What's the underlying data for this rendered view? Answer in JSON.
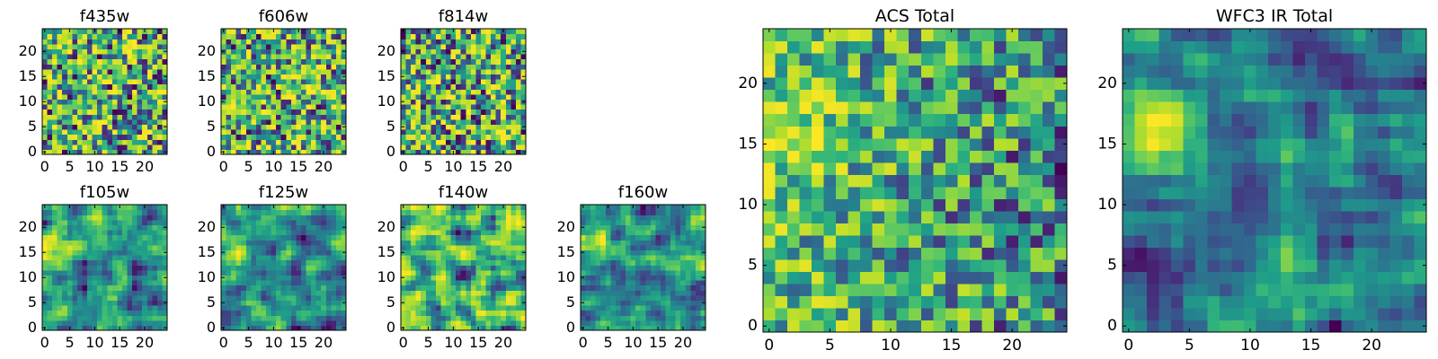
{
  "chart_data": [
    {
      "type": "heatmap",
      "title": "f435w",
      "xlabel": "",
      "ylabel": "",
      "grid_size": 25,
      "xlim": [
        -0.5,
        24.5
      ],
      "ylim": [
        -0.5,
        24.5
      ],
      "xticks": [
        0,
        5,
        10,
        15,
        20
      ],
      "yticks": [
        0,
        5,
        10,
        15,
        20
      ],
      "colormap": "viridis",
      "pattern": "uniform noise"
    },
    {
      "type": "heatmap",
      "title": "f606w",
      "xlabel": "",
      "ylabel": "",
      "grid_size": 25,
      "xlim": [
        -0.5,
        24.5
      ],
      "ylim": [
        -0.5,
        24.5
      ],
      "xticks": [
        0,
        5,
        10,
        15,
        20
      ],
      "yticks": [
        0,
        5,
        10,
        15,
        20
      ],
      "colormap": "viridis",
      "pattern": "uniform noise"
    },
    {
      "type": "heatmap",
      "title": "f814w",
      "xlabel": "",
      "ylabel": "",
      "grid_size": 25,
      "xlim": [
        -0.5,
        24.5
      ],
      "ylim": [
        -0.5,
        24.5
      ],
      "xticks": [
        0,
        5,
        10,
        15,
        20
      ],
      "yticks": [
        0,
        5,
        10,
        15,
        20
      ],
      "colormap": "viridis",
      "pattern": "uniform noise"
    },
    {
      "type": "heatmap",
      "title": "f105w",
      "xlabel": "",
      "ylabel": "",
      "grid_size": 25,
      "xlim": [
        -0.5,
        24.5
      ],
      "ylim": [
        -0.5,
        24.5
      ],
      "xticks": [
        0,
        5,
        10,
        15,
        20
      ],
      "yticks": [
        0,
        5,
        10,
        15,
        20
      ],
      "colormap": "viridis",
      "pattern": "smooth noise, bright blob near x=2, y=16"
    },
    {
      "type": "heatmap",
      "title": "f125w",
      "xlabel": "",
      "ylabel": "",
      "grid_size": 25,
      "xlim": [
        -0.5,
        24.5
      ],
      "ylim": [
        -0.5,
        24.5
      ],
      "xticks": [
        0,
        5,
        10,
        15,
        20
      ],
      "yticks": [
        0,
        5,
        10,
        15,
        20
      ],
      "colormap": "viridis",
      "pattern": "smooth noise, bright blob near x=2, y=16"
    },
    {
      "type": "heatmap",
      "title": "f140w",
      "xlabel": "",
      "ylabel": "",
      "grid_size": 25,
      "xlim": [
        -0.5,
        24.5
      ],
      "ylim": [
        -0.5,
        24.5
      ],
      "xticks": [
        0,
        5,
        10,
        15,
        20
      ],
      "yticks": [
        0,
        5,
        10,
        15,
        20
      ],
      "colormap": "viridis",
      "pattern": "smooth noise"
    },
    {
      "type": "heatmap",
      "title": "f160w",
      "xlabel": "",
      "ylabel": "",
      "grid_size": 25,
      "xlim": [
        -0.5,
        24.5
      ],
      "ylim": [
        -0.5,
        24.5
      ],
      "xticks": [
        0,
        5,
        10,
        15,
        20
      ],
      "yticks": [
        0,
        5,
        10,
        15,
        20
      ],
      "colormap": "viridis",
      "pattern": "smooth noise, bright blob near x=2, y=16"
    },
    {
      "type": "heatmap",
      "title": "ACS Total",
      "xlabel": "",
      "ylabel": "",
      "grid_size": 25,
      "xlim": [
        -0.5,
        24.5
      ],
      "ylim": [
        -0.5,
        24.5
      ],
      "xticks": [
        0,
        5,
        10,
        15,
        20
      ],
      "yticks": [
        0,
        5,
        10,
        15,
        20
      ],
      "colormap": "viridis",
      "pattern": "noise, brighter left side"
    },
    {
      "type": "heatmap",
      "title": "WFC3 IR Total",
      "xlabel": "",
      "ylabel": "",
      "grid_size": 25,
      "xlim": [
        -0.5,
        24.5
      ],
      "ylim": [
        -0.5,
        24.5
      ],
      "xticks": [
        0,
        5,
        10,
        15,
        20
      ],
      "yticks": [
        0,
        5,
        10,
        15,
        20
      ],
      "colormap": "viridis",
      "pattern": "smooth noise, bright blob near x=2, y=16, dark patches lower right"
    }
  ]
}
